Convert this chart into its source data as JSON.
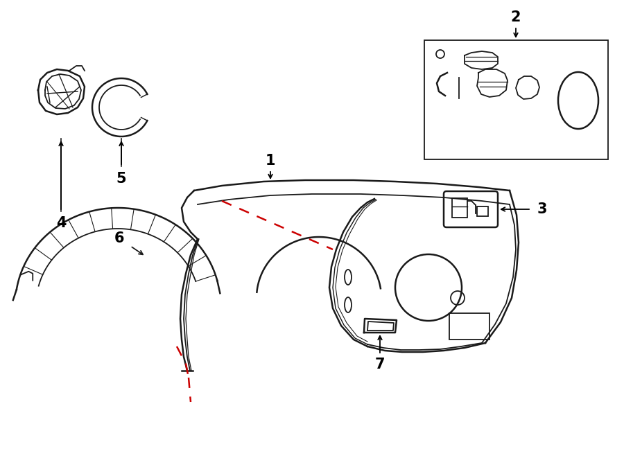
{
  "bg_color": "#ffffff",
  "line_color": "#1a1a1a",
  "red_dash_color": "#cc0000",
  "figsize": [
    9.0,
    6.61
  ],
  "dpi": 100
}
